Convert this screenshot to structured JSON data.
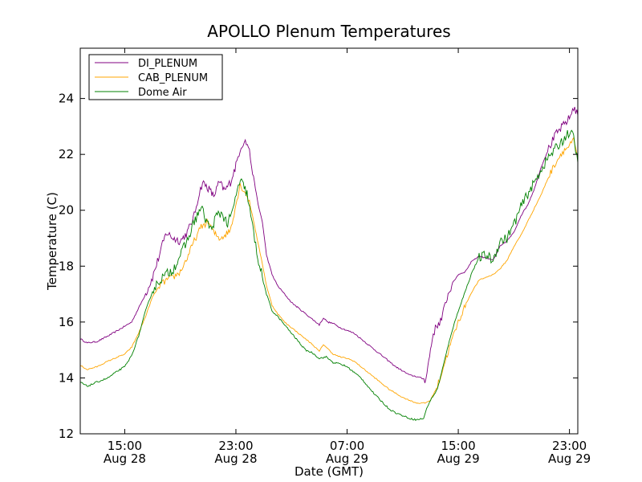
{
  "chart_data": {
    "type": "line",
    "title": "APOLLO Plenum Temperatures",
    "xlabel": "Date (GMT)",
    "ylabel": "Temperature (C)",
    "x_unit": "hours since Aug 28 00:00 GMT",
    "xlim": [
      11.8,
      47.6
    ],
    "ylim": [
      12,
      25.8
    ],
    "yticks": [
      12,
      14,
      16,
      18,
      20,
      22,
      24
    ],
    "xticks": [
      {
        "x": 15,
        "time": "15:00",
        "date": "Aug 28"
      },
      {
        "x": 23,
        "time": "23:00",
        "date": "Aug 28"
      },
      {
        "x": 31,
        "time": "07:00",
        "date": "Aug 29"
      },
      {
        "x": 39,
        "time": "15:00",
        "date": "Aug 29"
      },
      {
        "x": 47,
        "time": "23:00",
        "date": "Aug 29"
      }
    ],
    "legend_position": "top-left",
    "series": [
      {
        "name": "DI_PLENUM",
        "color": "#800080",
        "points": [
          [
            11.8,
            15.4
          ],
          [
            12.3,
            15.25
          ],
          [
            13.0,
            15.3
          ],
          [
            13.8,
            15.5
          ],
          [
            14.5,
            15.7
          ],
          [
            15.0,
            15.85
          ],
          [
            15.5,
            16.0
          ],
          [
            16.0,
            16.5
          ],
          [
            16.5,
            17.0
          ],
          [
            17.0,
            17.6
          ],
          [
            17.5,
            18.4
          ],
          [
            17.8,
            18.9
          ],
          [
            18.0,
            19.2
          ],
          [
            18.5,
            19.0
          ],
          [
            19.0,
            18.9
          ],
          [
            19.5,
            19.2
          ],
          [
            20.0,
            19.8
          ],
          [
            20.3,
            20.5
          ],
          [
            20.6,
            21.0
          ],
          [
            21.0,
            20.8
          ],
          [
            21.4,
            20.5
          ],
          [
            21.8,
            21.0
          ],
          [
            22.2,
            20.7
          ],
          [
            22.6,
            21.0
          ],
          [
            23.0,
            21.6
          ],
          [
            23.3,
            22.2
          ],
          [
            23.6,
            22.5
          ],
          [
            23.9,
            22.3
          ],
          [
            24.2,
            21.4
          ],
          [
            24.6,
            20.2
          ],
          [
            24.9,
            19.6
          ],
          [
            25.2,
            18.4
          ],
          [
            25.6,
            17.7
          ],
          [
            26.0,
            17.3
          ],
          [
            26.5,
            17.0
          ],
          [
            27.0,
            16.7
          ],
          [
            27.5,
            16.5
          ],
          [
            28.0,
            16.3
          ],
          [
            28.5,
            16.1
          ],
          [
            29.0,
            15.9
          ],
          [
            29.3,
            16.15
          ],
          [
            29.6,
            16.0
          ],
          [
            30.0,
            15.95
          ],
          [
            30.5,
            15.8
          ],
          [
            31.0,
            15.7
          ],
          [
            31.5,
            15.6
          ],
          [
            32.0,
            15.4
          ],
          [
            32.5,
            15.2
          ],
          [
            33.0,
            15.0
          ],
          [
            33.5,
            14.8
          ],
          [
            34.0,
            14.6
          ],
          [
            34.5,
            14.4
          ],
          [
            35.0,
            14.25
          ],
          [
            35.5,
            14.1
          ],
          [
            36.0,
            14.05
          ],
          [
            36.6,
            13.95
          ],
          [
            36.75,
            14.2
          ],
          [
            37.0,
            15.0
          ],
          [
            37.2,
            15.6
          ],
          [
            37.5,
            15.9
          ],
          [
            37.8,
            16.1
          ],
          [
            38.2,
            16.9
          ],
          [
            38.6,
            17.4
          ],
          [
            39.0,
            17.7
          ],
          [
            39.5,
            17.8
          ],
          [
            40.0,
            18.2
          ],
          [
            40.5,
            18.35
          ],
          [
            41.0,
            18.3
          ],
          [
            41.5,
            18.2
          ],
          [
            42.0,
            18.7
          ],
          [
            42.5,
            18.9
          ],
          [
            43.0,
            19.2
          ],
          [
            43.5,
            19.8
          ],
          [
            44.0,
            20.2
          ],
          [
            44.5,
            20.8
          ],
          [
            45.0,
            21.6
          ],
          [
            45.5,
            22.2
          ],
          [
            46.0,
            22.7
          ],
          [
            46.5,
            23.0
          ],
          [
            47.0,
            23.3
          ],
          [
            47.3,
            23.7
          ],
          [
            47.6,
            23.4
          ]
        ]
      },
      {
        "name": "CAB_PLENUM",
        "color": "#ffa500",
        "points": [
          [
            11.8,
            14.45
          ],
          [
            12.3,
            14.3
          ],
          [
            13.0,
            14.4
          ],
          [
            13.8,
            14.6
          ],
          [
            14.5,
            14.75
          ],
          [
            15.0,
            14.85
          ],
          [
            15.5,
            15.1
          ],
          [
            16.0,
            15.6
          ],
          [
            16.5,
            16.2
          ],
          [
            17.0,
            16.9
          ],
          [
            17.5,
            17.3
          ],
          [
            18.0,
            17.5
          ],
          [
            18.5,
            17.6
          ],
          [
            19.0,
            17.8
          ],
          [
            19.5,
            18.3
          ],
          [
            20.0,
            18.9
          ],
          [
            20.5,
            19.4
          ],
          [
            21.0,
            19.6
          ],
          [
            21.4,
            19.2
          ],
          [
            21.8,
            19.0
          ],
          [
            22.2,
            19.1
          ],
          [
            22.6,
            19.3
          ],
          [
            23.0,
            20.2
          ],
          [
            23.3,
            20.9
          ],
          [
            23.6,
            20.7
          ],
          [
            23.9,
            20.4
          ],
          [
            24.2,
            19.8
          ],
          [
            24.6,
            18.8
          ],
          [
            24.9,
            18.1
          ],
          [
            25.2,
            17.3
          ],
          [
            25.6,
            16.6
          ],
          [
            26.0,
            16.3
          ],
          [
            26.5,
            16.0
          ],
          [
            27.0,
            15.8
          ],
          [
            27.5,
            15.6
          ],
          [
            28.0,
            15.4
          ],
          [
            28.5,
            15.2
          ],
          [
            29.0,
            14.95
          ],
          [
            29.3,
            15.2
          ],
          [
            29.6,
            15.05
          ],
          [
            30.0,
            14.85
          ],
          [
            30.5,
            14.75
          ],
          [
            31.0,
            14.7
          ],
          [
            31.5,
            14.6
          ],
          [
            32.0,
            14.4
          ],
          [
            32.5,
            14.2
          ],
          [
            33.0,
            14.0
          ],
          [
            33.5,
            13.8
          ],
          [
            34.0,
            13.6
          ],
          [
            34.5,
            13.45
          ],
          [
            35.0,
            13.3
          ],
          [
            35.5,
            13.2
          ],
          [
            36.0,
            13.1
          ],
          [
            36.6,
            13.1
          ],
          [
            37.0,
            13.2
          ],
          [
            37.5,
            13.7
          ],
          [
            38.0,
            14.5
          ],
          [
            38.5,
            15.3
          ],
          [
            39.0,
            16.0
          ],
          [
            39.5,
            16.6
          ],
          [
            40.0,
            17.1
          ],
          [
            40.5,
            17.5
          ],
          [
            41.0,
            17.6
          ],
          [
            41.5,
            17.7
          ],
          [
            42.0,
            17.9
          ],
          [
            42.5,
            18.2
          ],
          [
            43.0,
            18.7
          ],
          [
            43.5,
            19.1
          ],
          [
            44.0,
            19.6
          ],
          [
            44.5,
            20.1
          ],
          [
            45.0,
            20.6
          ],
          [
            45.5,
            21.2
          ],
          [
            46.0,
            21.7
          ],
          [
            46.5,
            22.1
          ],
          [
            47.0,
            22.3
          ],
          [
            47.3,
            22.5
          ],
          [
            47.6,
            21.8
          ]
        ]
      },
      {
        "name": "Dome Air",
        "color": "#008000",
        "points": [
          [
            11.8,
            13.85
          ],
          [
            12.3,
            13.7
          ],
          [
            13.0,
            13.85
          ],
          [
            13.8,
            14.0
          ],
          [
            14.5,
            14.25
          ],
          [
            15.0,
            14.4
          ],
          [
            15.5,
            14.8
          ],
          [
            16.0,
            15.5
          ],
          [
            16.5,
            16.4
          ],
          [
            17.0,
            17.1
          ],
          [
            17.5,
            17.5
          ],
          [
            18.0,
            17.7
          ],
          [
            18.5,
            17.9
          ],
          [
            19.0,
            18.4
          ],
          [
            19.5,
            18.9
          ],
          [
            20.0,
            19.6
          ],
          [
            20.5,
            20.1
          ],
          [
            20.8,
            19.7
          ],
          [
            21.2,
            19.3
          ],
          [
            21.6,
            19.8
          ],
          [
            22.0,
            19.9
          ],
          [
            22.4,
            19.5
          ],
          [
            22.8,
            20.0
          ],
          [
            23.1,
            20.8
          ],
          [
            23.4,
            21.0
          ],
          [
            23.8,
            20.6
          ],
          [
            24.2,
            19.4
          ],
          [
            24.5,
            18.5
          ],
          [
            24.9,
            17.6
          ],
          [
            25.2,
            17.0
          ],
          [
            25.6,
            16.4
          ],
          [
            26.0,
            16.2
          ],
          [
            26.5,
            15.9
          ],
          [
            27.0,
            15.6
          ],
          [
            27.5,
            15.3
          ],
          [
            28.0,
            15.0
          ],
          [
            28.5,
            14.9
          ],
          [
            29.0,
            14.7
          ],
          [
            29.5,
            14.75
          ],
          [
            30.0,
            14.55
          ],
          [
            30.5,
            14.5
          ],
          [
            31.0,
            14.4
          ],
          [
            31.5,
            14.2
          ],
          [
            32.0,
            14.0
          ],
          [
            32.5,
            13.7
          ],
          [
            33.0,
            13.4
          ],
          [
            33.5,
            13.15
          ],
          [
            34.0,
            12.9
          ],
          [
            34.5,
            12.75
          ],
          [
            35.0,
            12.65
          ],
          [
            35.5,
            12.55
          ],
          [
            36.0,
            12.5
          ],
          [
            36.5,
            12.55
          ],
          [
            36.8,
            13.0
          ],
          [
            37.0,
            13.2
          ],
          [
            37.5,
            13.6
          ],
          [
            38.0,
            14.6
          ],
          [
            38.5,
            15.6
          ],
          [
            39.0,
            16.4
          ],
          [
            39.5,
            17.1
          ],
          [
            40.0,
            17.8
          ],
          [
            40.5,
            18.3
          ],
          [
            41.0,
            18.4
          ],
          [
            41.5,
            18.2
          ],
          [
            42.0,
            18.9
          ],
          [
            42.5,
            19.0
          ],
          [
            43.0,
            19.5
          ],
          [
            43.5,
            20.1
          ],
          [
            44.0,
            20.6
          ],
          [
            44.5,
            21.0
          ],
          [
            45.0,
            21.5
          ],
          [
            45.5,
            21.9
          ],
          [
            46.0,
            22.2
          ],
          [
            46.5,
            22.5
          ],
          [
            47.0,
            22.8
          ],
          [
            47.3,
            22.6
          ],
          [
            47.6,
            21.7
          ]
        ]
      }
    ]
  }
}
